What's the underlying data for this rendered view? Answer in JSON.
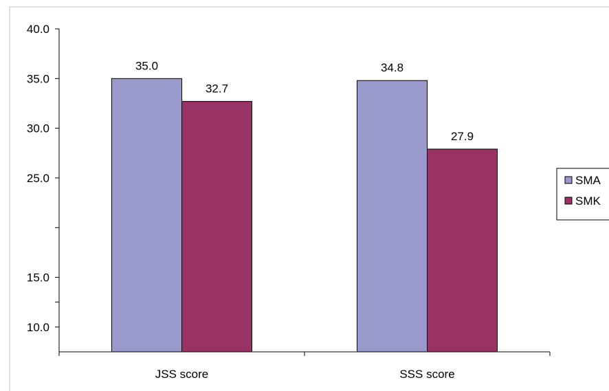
{
  "chart_data": {
    "type": "bar",
    "categories": [
      "JSS score",
      "SSS score"
    ],
    "series": [
      {
        "name": "SMA",
        "values": [
          35.0,
          34.8
        ],
        "color": "#9999cc"
      },
      {
        "name": "SMK",
        "values": [
          32.7,
          27.9
        ],
        "color": "#993366"
      }
    ],
    "data_labels": [
      [
        "35.0",
        "34.8"
      ],
      [
        "32.7",
        "27.9"
      ]
    ],
    "y_ticks": [
      {
        "value": 40.0,
        "label": "40.0"
      },
      {
        "value": 35.0,
        "label": "35.0"
      },
      {
        "value": 30.0,
        "label": "30.0"
      },
      {
        "value": 25.0,
        "label": "25.0"
      },
      {
        "value": 20.0,
        "label": ""
      },
      {
        "value": 15.0,
        "label": "15.0"
      },
      {
        "value": 12.5,
        "label": ""
      },
      {
        "value": 10.0,
        "label": "10.0"
      }
    ],
    "ylim": [
      7.5,
      40.0
    ],
    "grid": false,
    "legend": "right",
    "title": "",
    "xlabel": "",
    "ylabel": ""
  }
}
